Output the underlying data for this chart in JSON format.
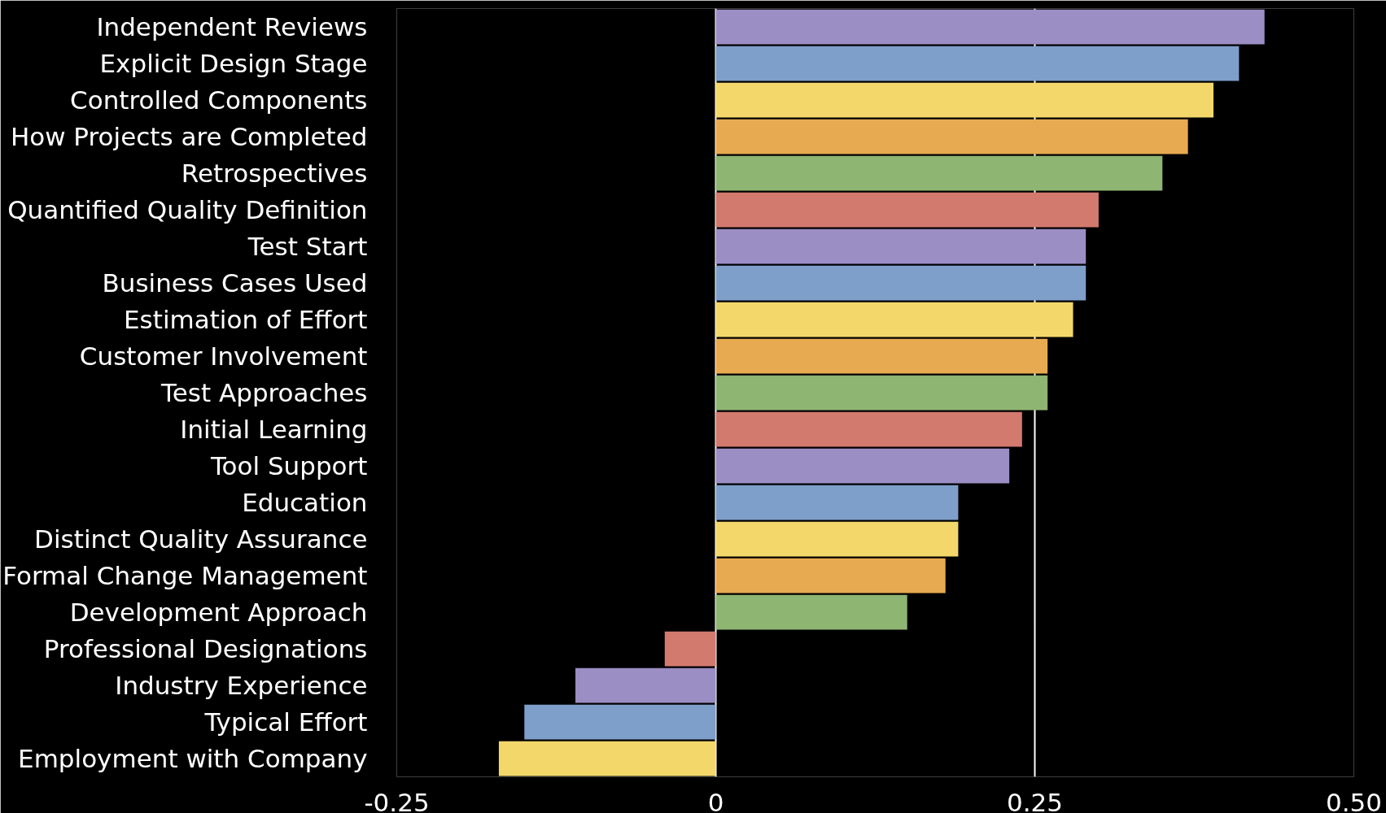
{
  "chart_data": {
    "type": "bar",
    "orientation": "horizontal",
    "categories": [
      "Independent Reviews",
      "Explicit Design Stage",
      "Controlled Components",
      "How Projects are Completed",
      "Retrospectives",
      "Quantified Quality Definition",
      "Test Start",
      "Business Cases Used",
      "Estimation of Effort",
      "Customer Involvement",
      "Test Approaches",
      "Initial Learning",
      "Tool Support",
      "Education",
      "Distinct Quality Assurance",
      "Formal Change Management",
      "Development Approach",
      "Professional Designations",
      "Industry Experience",
      "Typical Effort",
      "Employment with Company"
    ],
    "values": [
      0.43,
      0.41,
      0.39,
      0.37,
      0.35,
      0.3,
      0.29,
      0.29,
      0.28,
      0.26,
      0.26,
      0.24,
      0.23,
      0.19,
      0.19,
      0.18,
      0.15,
      -0.04,
      -0.11,
      -0.15,
      -0.17
    ],
    "colors": [
      "#9b8ec4",
      "#7f9fcb",
      "#f3d76b",
      "#e8aa50",
      "#8fb573",
      "#d37a6e",
      "#9b8ec4",
      "#7f9fcb",
      "#f3d76b",
      "#e8aa50",
      "#8fb573",
      "#d37a6e",
      "#9b8ec4",
      "#7f9fcb",
      "#f3d76b",
      "#e8aa50",
      "#8fb573",
      "#d37a6e",
      "#9b8ec4",
      "#7f9fcb",
      "#f3d76b"
    ],
    "xlim": [
      -0.25,
      0.5
    ],
    "xticks": [
      {
        "value": -0.25,
        "label": "-0.25"
      },
      0,
      {
        "value": 0.25,
        "label": "0.25"
      },
      {
        "value": 0.5,
        "label": "0.50"
      }
    ],
    "grid": "x"
  }
}
